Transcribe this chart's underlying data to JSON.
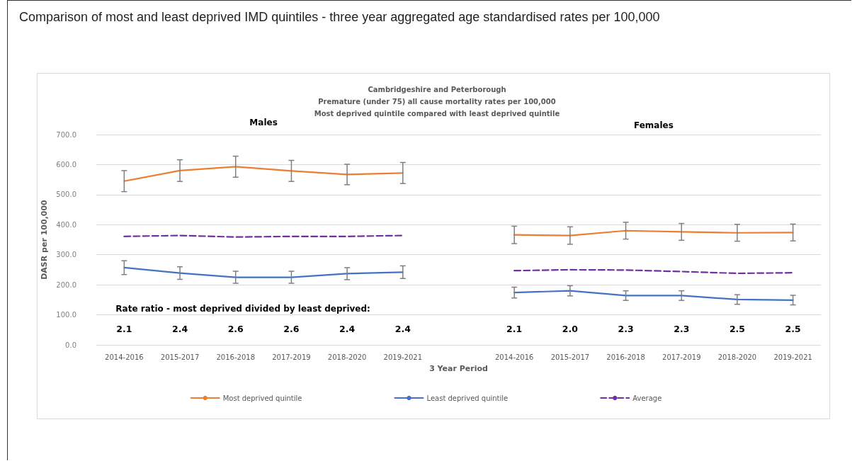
{
  "chart_data": {
    "type": "line",
    "title": "Comparison of most and least deprived IMD quintiles - three year aggregated age standardised rates per 100,000",
    "subtitle": "Cambridgeshire and Peterborough\nPremature (under 75) all cause mortality rates per 100,000\nMost deprived quintile compared with least deprived quintile",
    "xlabel": "3 Year Period",
    "ylabel": "DASR per 100,000",
    "categories": [
      "2014-2016",
      "2015-2017",
      "2016-2018",
      "2017-2019",
      "2018-2020",
      "2019-2021",
      null,
      "2014-2016",
      "2015-2017",
      "2016-2018",
      "2017-2019",
      "2018-2020",
      "2019-2021"
    ],
    "series": [
      {
        "name": "Most deprived quintile",
        "color": "#ed7d31",
        "values": [
          545,
          580,
          593,
          579,
          567,
          572,
          null,
          366,
          364,
          380,
          376,
          373,
          374
        ],
        "errors": [
          35,
          36,
          35,
          35,
          34,
          35,
          null,
          29,
          29,
          28,
          28,
          28,
          28
        ]
      },
      {
        "name": "Least deprived quintile",
        "color": "#4472c4",
        "values": [
          257,
          239,
          225,
          225,
          237,
          242,
          null,
          174,
          180,
          164,
          164,
          151,
          149
        ],
        "errors": [
          23,
          21,
          20,
          20,
          20,
          21,
          null,
          18,
          17,
          16,
          16,
          16,
          16
        ]
      },
      {
        "name": "Average",
        "color": "#7030a0",
        "line_style": "dashed",
        "values": [
          361,
          364,
          359,
          361,
          361,
          364,
          null,
          247,
          250,
          249,
          244,
          238,
          240
        ]
      }
    ],
    "ylim": [
      0,
      700
    ],
    "yticks": [
      {
        "value": 0,
        "label": "0.0"
      },
      {
        "value": 100,
        "label": "100.0"
      },
      {
        "value": 200,
        "label": "200.0"
      },
      {
        "value": 300,
        "label": "300.0"
      },
      {
        "value": 400,
        "label": "400.0"
      },
      {
        "value": 500,
        "label": "500.0"
      },
      {
        "value": 600,
        "label": "600.0"
      },
      {
        "value": 700,
        "label": "700.0"
      }
    ],
    "grid": "y",
    "legend": "bottom",
    "marker": "none",
    "line_style": "solid",
    "annotations": [
      "Males",
      "Females",
      "Rate ratio - most deprived divided by least deprived:",
      "2.1",
      "2.4",
      "2.6",
      "2.6",
      "2.4",
      "2.4",
      "2.1",
      "2.0",
      "2.3",
      "2.3",
      "2.5",
      "2.5"
    ]
  }
}
